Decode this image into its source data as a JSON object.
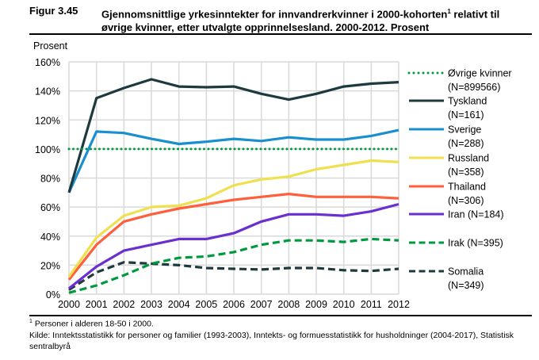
{
  "figure": {
    "number": "Figur 3.45",
    "title_part1": "Gjennomsnittlige yrkesinntekter for innvandrerkvinner i 2000-kohorten",
    "title_sup": "1",
    "title_part2": " relativt til øvrige kvinner, etter utvalgte opprinnelsesland. 2000-2012. Prosent"
  },
  "footnote": {
    "marker": "1",
    "text": " Personer i alderen 18-50 i 2000."
  },
  "source": "Kilde: Inntektsstatistikk for personer og familier (1993-2003), Inntekts- og formuesstatistikk for husholdninger (2004-2017), Statistisk sentralbyrå",
  "chart_data": {
    "type": "line",
    "title": "Gjennomsnittlige yrkesinntekter for innvandrerkvinner i 2000-kohorten relativt til øvrige kvinner, etter utvalgte opprinnelsesland. 2000-2012. Prosent",
    "xlabel": "",
    "ylabel": "Prosent",
    "x": [
      2000,
      2001,
      2002,
      2003,
      2004,
      2005,
      2006,
      2007,
      2008,
      2009,
      2010,
      2011,
      2012
    ],
    "x_tick_labels": [
      "2000",
      "2001",
      "2002",
      "2003",
      "2004",
      "2005",
      "2006",
      "2007",
      "2008",
      "2009",
      "2010",
      "2011",
      "2012"
    ],
    "ylim": [
      0,
      160
    ],
    "y_ticks": [
      0,
      20,
      40,
      60,
      80,
      100,
      120,
      140,
      160
    ],
    "y_tick_labels": [
      "0%",
      "20%",
      "40%",
      "60%",
      "80%",
      "100%",
      "120%",
      "140%",
      "160%"
    ],
    "grid": true,
    "legend_position": "right",
    "series": [
      {
        "name": "Øvrige kvinner",
        "legend_line1": "Øvrige kvinner",
        "legend_line2": "(N=899566)",
        "color": "#009a3e",
        "style": "dotted",
        "values": [
          100,
          100,
          100,
          100,
          100,
          100,
          100,
          100,
          100,
          100,
          100,
          100,
          100
        ]
      },
      {
        "name": "Tyskland",
        "legend_line1": "Tyskland",
        "legend_line2": "(N=161)",
        "color": "#1e3a3f",
        "style": "solid",
        "values": [
          70,
          135,
          142,
          148,
          143,
          142.5,
          143,
          138,
          134,
          138,
          143,
          145,
          146
        ]
      },
      {
        "name": "Sverige",
        "legend_line1": "Sverige",
        "legend_line2": "(N=288)",
        "color": "#1a8fd0",
        "style": "solid",
        "values": [
          70,
          112,
          111,
          107,
          103.5,
          105,
          107,
          105.5,
          108,
          106.5,
          106.5,
          109,
          113
        ]
      },
      {
        "name": "Russland",
        "legend_line1": "Russland",
        "legend_line2": "(N=358)",
        "color": "#f0e050",
        "style": "solid",
        "values": [
          12,
          39,
          54,
          60,
          61,
          66,
          75,
          79,
          81,
          86,
          89,
          92,
          91
        ]
      },
      {
        "name": "Thailand",
        "legend_line1": "Thailand",
        "legend_line2": "(N=306)",
        "color": "#ff5f3a",
        "style": "solid",
        "values": [
          10,
          34,
          50,
          55,
          59,
          62,
          65,
          67,
          69,
          67,
          67,
          67,
          66
        ]
      },
      {
        "name": "Iran",
        "legend_line1": "Iran (N=184)",
        "legend_line2": "",
        "color": "#6a2fcf",
        "style": "solid",
        "values": [
          4,
          19,
          30,
          34,
          38,
          38,
          42,
          50,
          55,
          55,
          54,
          57,
          62
        ]
      },
      {
        "name": "Irak",
        "legend_line1": "Irak (N=395)",
        "legend_line2": "",
        "color": "#009a3e",
        "style": "dashed",
        "values": [
          1,
          6,
          13,
          21,
          25,
          26,
          29,
          34,
          37,
          37,
          36,
          38,
          37
        ]
      },
      {
        "name": "Somalia",
        "legend_line1": "Somalia",
        "legend_line2": "(N=349)",
        "color": "#1e3a3f",
        "style": "dashed",
        "values": [
          3,
          15,
          22,
          21,
          20,
          18,
          17.5,
          17,
          18,
          18,
          16.5,
          16,
          17.5
        ]
      }
    ]
  }
}
